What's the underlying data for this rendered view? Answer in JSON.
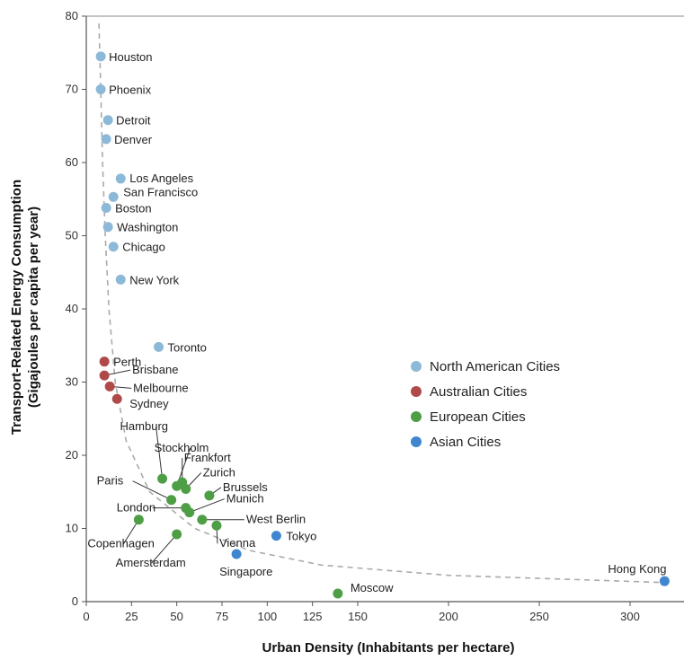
{
  "chart_data": {
    "type": "scatter",
    "xlabel": "Urban Density (Inhabitants per hectare)",
    "ylabel_line1": "Transport-Related Energy Consumption",
    "ylabel_line2": "(Gigajoules per capita per year)",
    "xlim": [
      0,
      325
    ],
    "ylim": [
      0,
      80
    ],
    "x_ticks": [
      0,
      25,
      50,
      75,
      100,
      125,
      150,
      200,
      250,
      300
    ],
    "y_ticks": [
      0,
      10,
      20,
      30,
      40,
      50,
      60,
      70,
      80
    ],
    "grid": false,
    "legend_position": "right-middle",
    "trend_line": {
      "style": "dashed",
      "color": "#aaaaaa",
      "points": [
        [
          7,
          79
        ],
        [
          8,
          70
        ],
        [
          9,
          60
        ],
        [
          10.5,
          50
        ],
        [
          12.5,
          40
        ],
        [
          16,
          30
        ],
        [
          22,
          22
        ],
        [
          35,
          15
        ],
        [
          60,
          10
        ],
        [
          90,
          7
        ],
        [
          130,
          5
        ],
        [
          200,
          3.6
        ],
        [
          320,
          2.6
        ]
      ]
    },
    "series": [
      {
        "name": "North American Cities",
        "color": "#8db9d8",
        "points": [
          {
            "label": "Houston",
            "x": 8,
            "y": 74.5
          },
          {
            "label": "Phoenix",
            "x": 8,
            "y": 70
          },
          {
            "label": "Detroit",
            "x": 12,
            "y": 65.8
          },
          {
            "label": "Denver",
            "x": 11,
            "y": 63.2
          },
          {
            "label": "Los Angeles",
            "x": 19,
            "y": 57.8
          },
          {
            "label": "San Francisco",
            "x": 15,
            "y": 55.3
          },
          {
            "label": "Boston",
            "x": 11,
            "y": 53.8
          },
          {
            "label": "Washington",
            "x": 12,
            "y": 51.2
          },
          {
            "label": "Chicago",
            "x": 15,
            "y": 48.5
          },
          {
            "label": "New York",
            "x": 19,
            "y": 44
          },
          {
            "label": "Toronto",
            "x": 40,
            "y": 34.8
          }
        ]
      },
      {
        "name": "Australian Cities",
        "color": "#b04a4a",
        "points": [
          {
            "label": "Perth",
            "x": 10,
            "y": 32.8
          },
          {
            "label": "Brisbane",
            "x": 10,
            "y": 30.9
          },
          {
            "label": "Melbourne",
            "x": 13,
            "y": 29.4
          },
          {
            "label": "Sydney",
            "x": 17,
            "y": 27.7
          }
        ]
      },
      {
        "name": "European Cities",
        "color": "#4e9e46",
        "points": [
          {
            "label": "Hamburg",
            "x": 42,
            "y": 16.8
          },
          {
            "label": "Stockholm",
            "x": 50,
            "y": 15.8
          },
          {
            "label": "Frankfort",
            "x": 53,
            "y": 16.3
          },
          {
            "label": "Zurich",
            "x": 55,
            "y": 15.4
          },
          {
            "label": "Brussels",
            "x": 68,
            "y": 14.5
          },
          {
            "label": "Paris",
            "x": 47,
            "y": 13.9
          },
          {
            "label": "London",
            "x": 55,
            "y": 12.8
          },
          {
            "label": "Munich",
            "x": 57,
            "y": 12.2
          },
          {
            "label": "West Berlin",
            "x": 64,
            "y": 11.2
          },
          {
            "label": "Vienna",
            "x": 72,
            "y": 10.4
          },
          {
            "label": "Copenhagen",
            "x": 29,
            "y": 11.2
          },
          {
            "label": "Amersterdam",
            "x": 50,
            "y": 9.2
          },
          {
            "label": "Moscow",
            "x": 139,
            "y": 1.1
          }
        ]
      },
      {
        "name": "Asian Cities",
        "color": "#3f86cf",
        "points": [
          {
            "label": "Tokyo",
            "x": 105,
            "y": 9
          },
          {
            "label": "Singapore",
            "x": 83,
            "y": 6.5
          },
          {
            "label": "Hong Kong",
            "x": 319,
            "y": 2.8
          }
        ]
      }
    ]
  }
}
